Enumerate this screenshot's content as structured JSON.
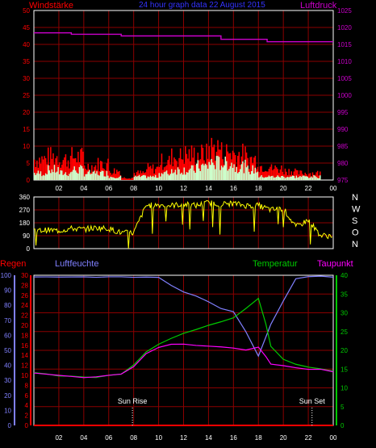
{
  "title": "24 hour graph data  22 August 2015",
  "colors": {
    "background": "#000000",
    "axis": "#ffffff",
    "grid": "#8b0000",
    "wind": "#ff0000",
    "gust": "#ff0000",
    "wind_avg": "#ccffcc",
    "pressure": "#cc00cc",
    "direction": "#ffff00",
    "rain": "#ff0000",
    "humidity": "#8080ff",
    "temperature": "#00cc00",
    "dewpoint": "#ff00ff",
    "sun_marker": "#ffffff"
  },
  "labels": {
    "wind": "Windstärke",
    "pressure": "Luftdruck",
    "rain": "Regen",
    "humidity": "Luftfeuchte",
    "temperature": "Temperatur",
    "dewpoint": "Taupunkt",
    "sunrise": "Sun Rise",
    "sunset": "Sun Set"
  },
  "compass": [
    "N",
    "W",
    "S",
    "O",
    "N"
  ],
  "chart_data": [
    {
      "type": "bar",
      "name": "wind_pressure",
      "x_ticks": [
        "02",
        "04",
        "06",
        "08",
        "10",
        "12",
        "14",
        "16",
        "18",
        "20",
        "22",
        "00"
      ],
      "x_range_hours": [
        0,
        24
      ],
      "ylim_left": [
        0,
        50
      ],
      "y_ticks_left": [
        0,
        5,
        10,
        15,
        20,
        25,
        30,
        35,
        40,
        45,
        50
      ],
      "ylim_right": [
        975,
        1025
      ],
      "y_ticks_right": [
        975,
        980,
        985,
        990,
        995,
        1000,
        1005,
        1010,
        1015,
        1020,
        1025
      ],
      "ylabel_left": "Windstärke",
      "ylabel_right": "Luftdruck",
      "wind_hourly_max": [
        9,
        10,
        9,
        10,
        6,
        7,
        4,
        1,
        3,
        5,
        8,
        10,
        11,
        11,
        14,
        12,
        11,
        9,
        6,
        5,
        4,
        3,
        3,
        0
      ],
      "wind_hourly_avg": [
        2,
        3,
        2,
        3,
        2,
        2,
        1,
        0,
        1,
        1,
        2,
        3,
        3,
        4,
        5,
        5,
        4,
        3,
        1,
        1,
        1,
        1,
        1,
        0
      ],
      "pressure": [
        [
          0,
          1018.4
        ],
        [
          3,
          1018.4
        ],
        [
          3,
          1018.0
        ],
        [
          7,
          1018.0
        ],
        [
          7,
          1017.5
        ],
        [
          15,
          1017.5
        ],
        [
          15,
          1016.5
        ],
        [
          18.7,
          1016.5
        ],
        [
          18.7,
          1015.8
        ],
        [
          24,
          1015.8
        ]
      ]
    },
    {
      "type": "scatter",
      "name": "wind_direction",
      "x_range_hours": [
        0,
        24
      ],
      "ylim": [
        0,
        360
      ],
      "y_ticks": [
        0,
        90,
        180,
        270,
        360
      ],
      "direction_hourly": [
        [
          0,
          120
        ],
        [
          1,
          130
        ],
        [
          2,
          125
        ],
        [
          3,
          140
        ],
        [
          4,
          135
        ],
        [
          5,
          145
        ],
        [
          6,
          140
        ],
        [
          7,
          110
        ],
        [
          8,
          110
        ],
        [
          9,
          300
        ],
        [
          10,
          305
        ],
        [
          11,
          300
        ],
        [
          12,
          310
        ],
        [
          13,
          300
        ],
        [
          14,
          320
        ],
        [
          15,
          310
        ],
        [
          16,
          315
        ],
        [
          17,
          300
        ],
        [
          18,
          300
        ],
        [
          19,
          270
        ],
        [
          20,
          280
        ],
        [
          21,
          150
        ],
        [
          22,
          200
        ],
        [
          23,
          90
        ]
      ]
    },
    {
      "type": "line",
      "name": "weather",
      "x_range_hours": [
        0,
        24
      ],
      "ylim_left": [
        0,
        100
      ],
      "y_ticks_left_rain": [
        0,
        2,
        4,
        6,
        8,
        10,
        12,
        14,
        16,
        18,
        20,
        22,
        24,
        26,
        28,
        30
      ],
      "y_ticks_left_humidity": [
        0,
        10,
        20,
        30,
        40,
        50,
        60,
        70,
        80,
        90,
        100
      ],
      "ylim_right": [
        0,
        40
      ],
      "y_ticks_right": [
        0,
        5,
        10,
        15,
        20,
        25,
        30,
        35,
        40
      ],
      "sunrise_hour": 7.9,
      "sunset_hour": 22.3,
      "series": [
        {
          "name": "Regen",
          "axis": "rain",
          "values": [
            [
              0,
              0
            ],
            [
              24,
              0
            ]
          ]
        },
        {
          "name": "Luftfeuchte",
          "axis": "humidity",
          "values": [
            [
              0,
              99
            ],
            [
              1,
              99
            ],
            [
              2,
              99
            ],
            [
              3,
              99
            ],
            [
              4,
              99
            ],
            [
              5,
              99
            ],
            [
              6,
              99
            ],
            [
              7,
              99
            ],
            [
              8,
              99
            ],
            [
              9,
              99
            ],
            [
              10,
              99
            ],
            [
              11,
              93
            ],
            [
              12,
              89
            ],
            [
              13,
              86
            ],
            [
              14,
              82
            ],
            [
              15,
              78
            ],
            [
              16,
              76
            ],
            [
              17,
              62
            ],
            [
              18,
              46
            ],
            [
              19,
              67
            ],
            [
              20,
              83
            ],
            [
              21,
              98
            ],
            [
              22,
              99
            ],
            [
              23,
              99
            ],
            [
              24,
              99
            ]
          ]
        },
        {
          "name": "Temperatur",
          "axis": "temp",
          "values": [
            [
              0,
              14
            ],
            [
              1,
              13.8
            ],
            [
              2,
              13.2
            ],
            [
              3,
              13
            ],
            [
              4,
              12.8
            ],
            [
              5,
              12.8
            ],
            [
              6,
              13.3
            ],
            [
              7,
              13.8
            ],
            [
              8,
              16
            ],
            [
              9,
              19.5
            ],
            [
              10,
              21.5
            ],
            [
              11,
              23.3
            ],
            [
              12,
              24.5
            ],
            [
              13,
              25.5
            ],
            [
              14,
              26.5
            ],
            [
              15,
              27.5
            ],
            [
              16,
              28.5
            ],
            [
              17,
              31
            ],
            [
              18,
              34
            ],
            [
              18.6,
              27
            ],
            [
              19,
              21
            ],
            [
              20,
              17.5
            ],
            [
              21,
              16.2
            ],
            [
              22,
              15.5
            ],
            [
              23,
              15
            ],
            [
              24,
              14.5
            ]
          ]
        },
        {
          "name": "Taupunkt",
          "axis": "temp",
          "values": [
            [
              0,
              14
            ],
            [
              1,
              13.7
            ],
            [
              2,
              13.2
            ],
            [
              3,
              13
            ],
            [
              4,
              12.8
            ],
            [
              5,
              12.8
            ],
            [
              6,
              13.2
            ],
            [
              7,
              13.8
            ],
            [
              8,
              15.8
            ],
            [
              9,
              19
            ],
            [
              10,
              20.8
            ],
            [
              11,
              21.5
            ],
            [
              12,
              21.5
            ],
            [
              13,
              21.2
            ],
            [
              14,
              21
            ],
            [
              15,
              20.8
            ],
            [
              16,
              20.5
            ],
            [
              17,
              20
            ],
            [
              18,
              21
            ],
            [
              18.6,
              18.5
            ],
            [
              19,
              16.5
            ],
            [
              20,
              16
            ],
            [
              21,
              15.5
            ],
            [
              22,
              15
            ],
            [
              23,
              14.8
            ],
            [
              24,
              14.3
            ]
          ]
        }
      ]
    }
  ]
}
